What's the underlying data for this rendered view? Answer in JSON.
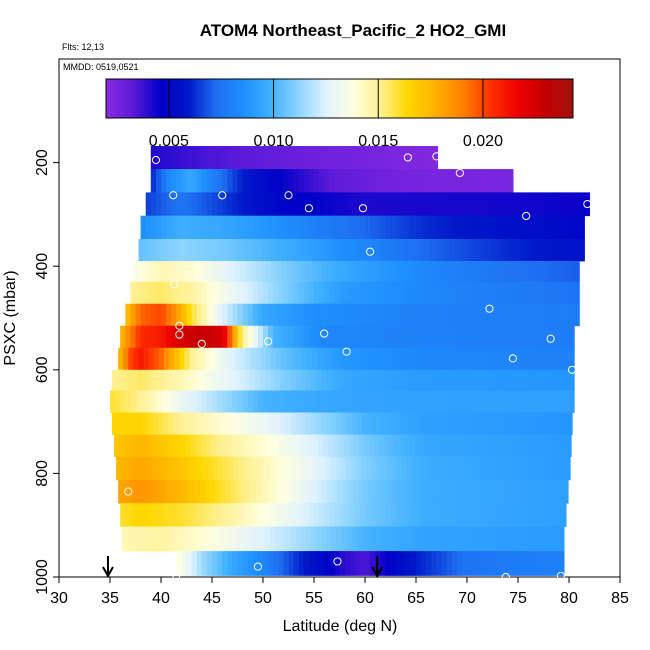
{
  "chart_data": {
    "type": "heatmap",
    "title": "ATOM4 Northeast_Pacific_2 HO2_GMI",
    "flights_note": "Flts: 12,13",
    "date_note": "MMDD: 0519,0521",
    "xlabel": "Latitude (deg N)",
    "ylabel": "PSXC (mbar)",
    "xlim": [
      30,
      85
    ],
    "ylim": [
      1000,
      0
    ],
    "x_ticks": [
      30,
      35,
      40,
      45,
      50,
      55,
      60,
      65,
      70,
      75,
      80,
      85
    ],
    "x_tick_labels": [
      "30",
      "35",
      "40",
      "45",
      "50",
      "55",
      "60",
      "65",
      "70",
      "75",
      "80",
      "85"
    ],
    "y_ticks": [
      200,
      400,
      600,
      800,
      1000
    ],
    "y_tick_labels": [
      "200",
      "400",
      "600",
      "800",
      "1000"
    ],
    "colorbar": {
      "range": [
        0.002,
        0.0243
      ],
      "ticks": [
        0.005,
        0.01,
        0.015,
        0.02
      ],
      "tick_labels": [
        "0.005",
        "0.010",
        "0.015",
        "0.020"
      ],
      "palette": [
        "#8a2be2",
        "#5a1ad8",
        "#0000c8",
        "#0018c8",
        "#1e6ef0",
        "#1e90ff",
        "#40b0ff",
        "#8cd4ff",
        "#dff2ff",
        "#ffffe0",
        "#fff08c",
        "#ffd700",
        "#ffb000",
        "#ff8000",
        "#ff3000",
        "#ee0000",
        "#c40000",
        "#a01010"
      ]
    },
    "bands": [
      {
        "p": 190,
        "lat_start": 39,
        "lat_end": 67.1,
        "values": [
          [
            39,
            0.0042
          ],
          [
            45,
            0.0035
          ],
          [
            55,
            0.0028
          ],
          [
            67,
            0.0022
          ]
        ]
      },
      {
        "p": 235,
        "lat_start": 39,
        "lat_end": 74.5,
        "values": [
          [
            39,
            0.006
          ],
          [
            41,
            0.0085
          ],
          [
            43,
            0.0095
          ],
          [
            45,
            0.008
          ],
          [
            48,
            0.006
          ],
          [
            52,
            0.0045
          ],
          [
            57,
            0.0032
          ],
          [
            63,
            0.0026
          ],
          [
            74.5,
            0.0024
          ]
        ]
      },
      {
        "p": 280,
        "lat_start": 38.5,
        "lat_end": 82,
        "values": [
          [
            38.5,
            0.0065
          ],
          [
            42,
            0.0075
          ],
          [
            46,
            0.0065
          ],
          [
            52,
            0.0048
          ],
          [
            60,
            0.0042
          ],
          [
            70,
            0.0043
          ],
          [
            82,
            0.0045
          ]
        ]
      },
      {
        "p": 325,
        "lat_start": 38,
        "lat_end": 81.5,
        "values": [
          [
            38,
            0.0085
          ],
          [
            42,
            0.0098
          ],
          [
            46,
            0.0095
          ],
          [
            52,
            0.0085
          ],
          [
            58,
            0.0075
          ],
          [
            66,
            0.0062
          ],
          [
            74,
            0.0055
          ],
          [
            81.5,
            0.005
          ]
        ]
      },
      {
        "p": 370,
        "lat_start": 37.8,
        "lat_end": 81.5,
        "values": [
          [
            37.8,
            0.0105
          ],
          [
            42,
            0.0112
          ],
          [
            46,
            0.0108
          ],
          [
            52,
            0.0098
          ],
          [
            58,
            0.0085
          ],
          [
            66,
            0.0072
          ],
          [
            74,
            0.0062
          ],
          [
            81.5,
            0.0056
          ]
        ]
      },
      {
        "p": 410,
        "lat_start": 37.3,
        "lat_end": 81,
        "values": [
          [
            37.3,
            0.0135
          ],
          [
            40,
            0.0145
          ],
          [
            43,
            0.014
          ],
          [
            47,
            0.0125
          ],
          [
            52,
            0.011
          ],
          [
            58,
            0.0095
          ],
          [
            66,
            0.0082
          ],
          [
            74,
            0.0075
          ],
          [
            81,
            0.007
          ]
        ]
      },
      {
        "p": 450,
        "lat_start": 37,
        "lat_end": 81,
        "values": [
          [
            37,
            0.015
          ],
          [
            40,
            0.0155
          ],
          [
            43,
            0.0148
          ],
          [
            47,
            0.013
          ],
          [
            52,
            0.011
          ],
          [
            58,
            0.009
          ],
          [
            66,
            0.0082
          ],
          [
            74,
            0.0078
          ],
          [
            81,
            0.0075
          ]
        ]
      },
      {
        "p": 495,
        "lat_start": 36.5,
        "lat_end": 81,
        "values": [
          [
            36.5,
            0.017
          ],
          [
            38,
            0.0195
          ],
          [
            40,
            0.02
          ],
          [
            41.5,
            0.0185
          ],
          [
            43,
            0.016
          ],
          [
            46,
            0.0125
          ],
          [
            50,
            0.0095
          ],
          [
            55,
            0.0085
          ],
          [
            65,
            0.008
          ],
          [
            81,
            0.0078
          ]
        ]
      },
      {
        "p": 535,
        "lat_start": 36,
        "lat_end": 80.5,
        "values": [
          [
            36,
            0.0175
          ],
          [
            38,
            0.0205
          ],
          [
            40,
            0.021
          ],
          [
            42,
            0.0225
          ],
          [
            44,
            0.023
          ],
          [
            46,
            0.0225
          ],
          [
            48,
            0.015
          ],
          [
            51,
            0.01
          ],
          [
            56,
            0.0082
          ],
          [
            66,
            0.008
          ],
          [
            80.5,
            0.0078
          ]
        ]
      },
      {
        "p": 580,
        "lat_start": 35.8,
        "lat_end": 80.5,
        "values": [
          [
            35.8,
            0.017
          ],
          [
            37,
            0.02
          ],
          [
            38,
            0.021
          ],
          [
            40,
            0.0195
          ],
          [
            43,
            0.015
          ],
          [
            47,
            0.0125
          ],
          [
            52,
            0.0105
          ],
          [
            58,
            0.0088
          ],
          [
            66,
            0.0082
          ],
          [
            80.5,
            0.008
          ]
        ]
      },
      {
        "p": 620,
        "lat_start": 35.2,
        "lat_end": 80.5,
        "values": [
          [
            35.2,
            0.015
          ],
          [
            38,
            0.0155
          ],
          [
            42,
            0.0145
          ],
          [
            46,
            0.013
          ],
          [
            52,
            0.011
          ],
          [
            58,
            0.0095
          ],
          [
            66,
            0.009
          ],
          [
            80.5,
            0.0088
          ]
        ]
      },
      {
        "p": 660,
        "lat_start": 35,
        "lat_end": 80.5,
        "values": [
          [
            35,
            0.016
          ],
          [
            38,
            0.015
          ],
          [
            42,
            0.013
          ],
          [
            46,
            0.0115
          ],
          [
            50,
            0.01
          ],
          [
            56,
            0.0095
          ],
          [
            64,
            0.0093
          ],
          [
            80.5,
            0.0092
          ]
        ]
      },
      {
        "p": 705,
        "lat_start": 35.2,
        "lat_end": 80.3,
        "values": [
          [
            35.2,
            0.0165
          ],
          [
            38,
            0.0165
          ],
          [
            42,
            0.015
          ],
          [
            46,
            0.014
          ],
          [
            50,
            0.013
          ],
          [
            55,
            0.0115
          ],
          [
            60,
            0.01
          ],
          [
            66,
            0.0092
          ],
          [
            80.3,
            0.0088
          ]
        ]
      },
      {
        "p": 745,
        "lat_start": 35.4,
        "lat_end": 80.2,
        "values": [
          [
            35.4,
            0.017
          ],
          [
            38,
            0.0175
          ],
          [
            42,
            0.0165
          ],
          [
            46,
            0.015
          ],
          [
            50,
            0.014
          ],
          [
            55,
            0.0125
          ],
          [
            60,
            0.0108
          ],
          [
            66,
            0.0095
          ],
          [
            80.2,
            0.009
          ]
        ]
      },
      {
        "p": 790,
        "lat_start": 35.6,
        "lat_end": 80.1,
        "values": [
          [
            35.6,
            0.0175
          ],
          [
            38,
            0.018
          ],
          [
            42,
            0.017
          ],
          [
            46,
            0.0158
          ],
          [
            50,
            0.0145
          ],
          [
            55,
            0.0128
          ],
          [
            60,
            0.011
          ],
          [
            66,
            0.0097
          ],
          [
            80.1,
            0.009
          ]
        ]
      },
      {
        "p": 835,
        "lat_start": 35.8,
        "lat_end": 79.9,
        "values": [
          [
            35.8,
            0.018
          ],
          [
            38,
            0.0185
          ],
          [
            42,
            0.0175
          ],
          [
            46,
            0.016
          ],
          [
            50,
            0.0145
          ],
          [
            55,
            0.0125
          ],
          [
            60,
            0.0108
          ],
          [
            66,
            0.0097
          ],
          [
            79.9,
            0.0092
          ]
        ]
      },
      {
        "p": 880,
        "lat_start": 36,
        "lat_end": 79.7,
        "values": [
          [
            36,
            0.016
          ],
          [
            38,
            0.0165
          ],
          [
            42,
            0.016
          ],
          [
            46,
            0.015
          ],
          [
            50,
            0.0138
          ],
          [
            55,
            0.0122
          ],
          [
            60,
            0.0108
          ],
          [
            66,
            0.0097
          ],
          [
            79.7,
            0.0092
          ]
        ]
      },
      {
        "p": 925,
        "lat_start": 36.2,
        "lat_end": 79.5,
        "values": [
          [
            36.2,
            0.0145
          ],
          [
            40,
            0.0148
          ],
          [
            44,
            0.014
          ],
          [
            48,
            0.013
          ],
          [
            52,
            0.012
          ],
          [
            56,
            0.011
          ],
          [
            60,
            0.01
          ],
          [
            66,
            0.0093
          ],
          [
            79.5,
            0.009
          ]
        ]
      },
      {
        "p": 975,
        "lat_start": 41.5,
        "lat_end": 79.5,
        "values": [
          [
            41.5,
            0.014
          ],
          [
            44,
            0.0115
          ],
          [
            47,
            0.0095
          ],
          [
            50,
            0.0082
          ],
          [
            53,
            0.0065
          ],
          [
            56,
            0.005
          ],
          [
            58,
            0.004
          ],
          [
            60,
            0.0035
          ],
          [
            62,
            0.0045
          ],
          [
            65,
            0.006
          ],
          [
            70,
            0.0075
          ],
          [
            79.5,
            0.008
          ]
        ]
      }
    ],
    "observations": [
      [
        39.5,
        195
      ],
      [
        41.2,
        263
      ],
      [
        46,
        263
      ],
      [
        52.5,
        263
      ],
      [
        54.5,
        288
      ],
      [
        59.8,
        288
      ],
      [
        60.5,
        372
      ],
      [
        64.2,
        190
      ],
      [
        67,
        188
      ],
      [
        69.3,
        220
      ],
      [
        75.8,
        303
      ],
      [
        81.8,
        280
      ],
      [
        41.3,
        435
      ],
      [
        41.8,
        515
      ],
      [
        41.8,
        532
      ],
      [
        44,
        550
      ],
      [
        50.5,
        545
      ],
      [
        56,
        530
      ],
      [
        58.2,
        565
      ],
      [
        72.2,
        482
      ],
      [
        74.5,
        578
      ],
      [
        78.2,
        540
      ],
      [
        80.3,
        600
      ],
      [
        36.8,
        835
      ],
      [
        41.5,
        997
      ],
      [
        49.5,
        980
      ],
      [
        57.3,
        970
      ],
      [
        73.8,
        1000
      ],
      [
        79.2,
        998
      ]
    ],
    "flight_markers": [
      34.8,
      61.2
    ]
  }
}
